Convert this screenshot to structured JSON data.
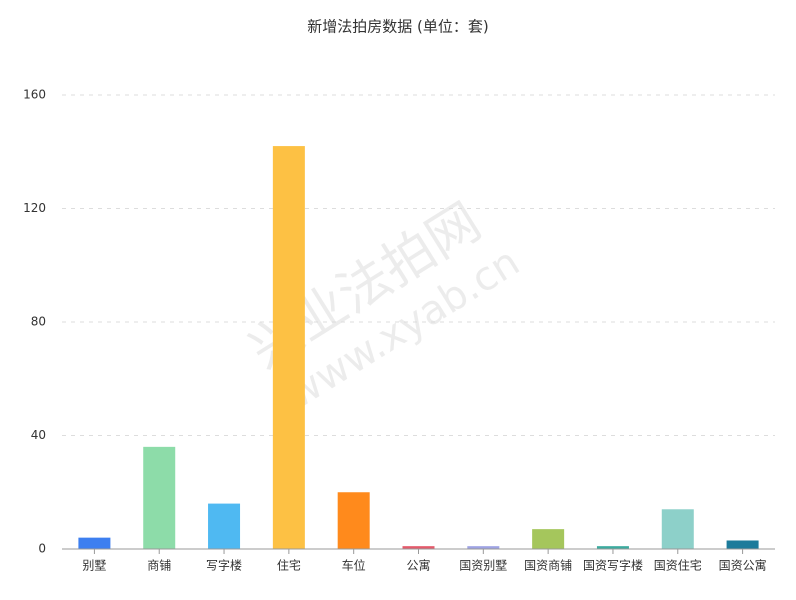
{
  "chart_data": {
    "type": "bar",
    "title": "新增法拍房数据 (单位：套)",
    "categories": [
      "别墅",
      "商铺",
      "写字楼",
      "住宅",
      "车位",
      "公寓",
      "国资别墅",
      "国资商铺",
      "国资写字楼",
      "国资住宅",
      "国资公寓"
    ],
    "values": [
      4,
      36,
      16,
      142,
      20,
      1,
      1,
      7,
      1,
      14,
      3
    ],
    "colors": [
      "#3d7ff0",
      "#8ddca9",
      "#4fb9f2",
      "#fdc144",
      "#ff8a1c",
      "#e35a6b",
      "#9ea3e3",
      "#a5c65c",
      "#3cab9f",
      "#8dd0c9",
      "#1c7b9b"
    ],
    "ylim": [
      0,
      160
    ],
    "yticks": [
      0,
      40,
      80,
      120,
      160
    ],
    "grid": true,
    "watermark": [
      "兴业法拍网",
      "www.xyab.cn"
    ]
  }
}
